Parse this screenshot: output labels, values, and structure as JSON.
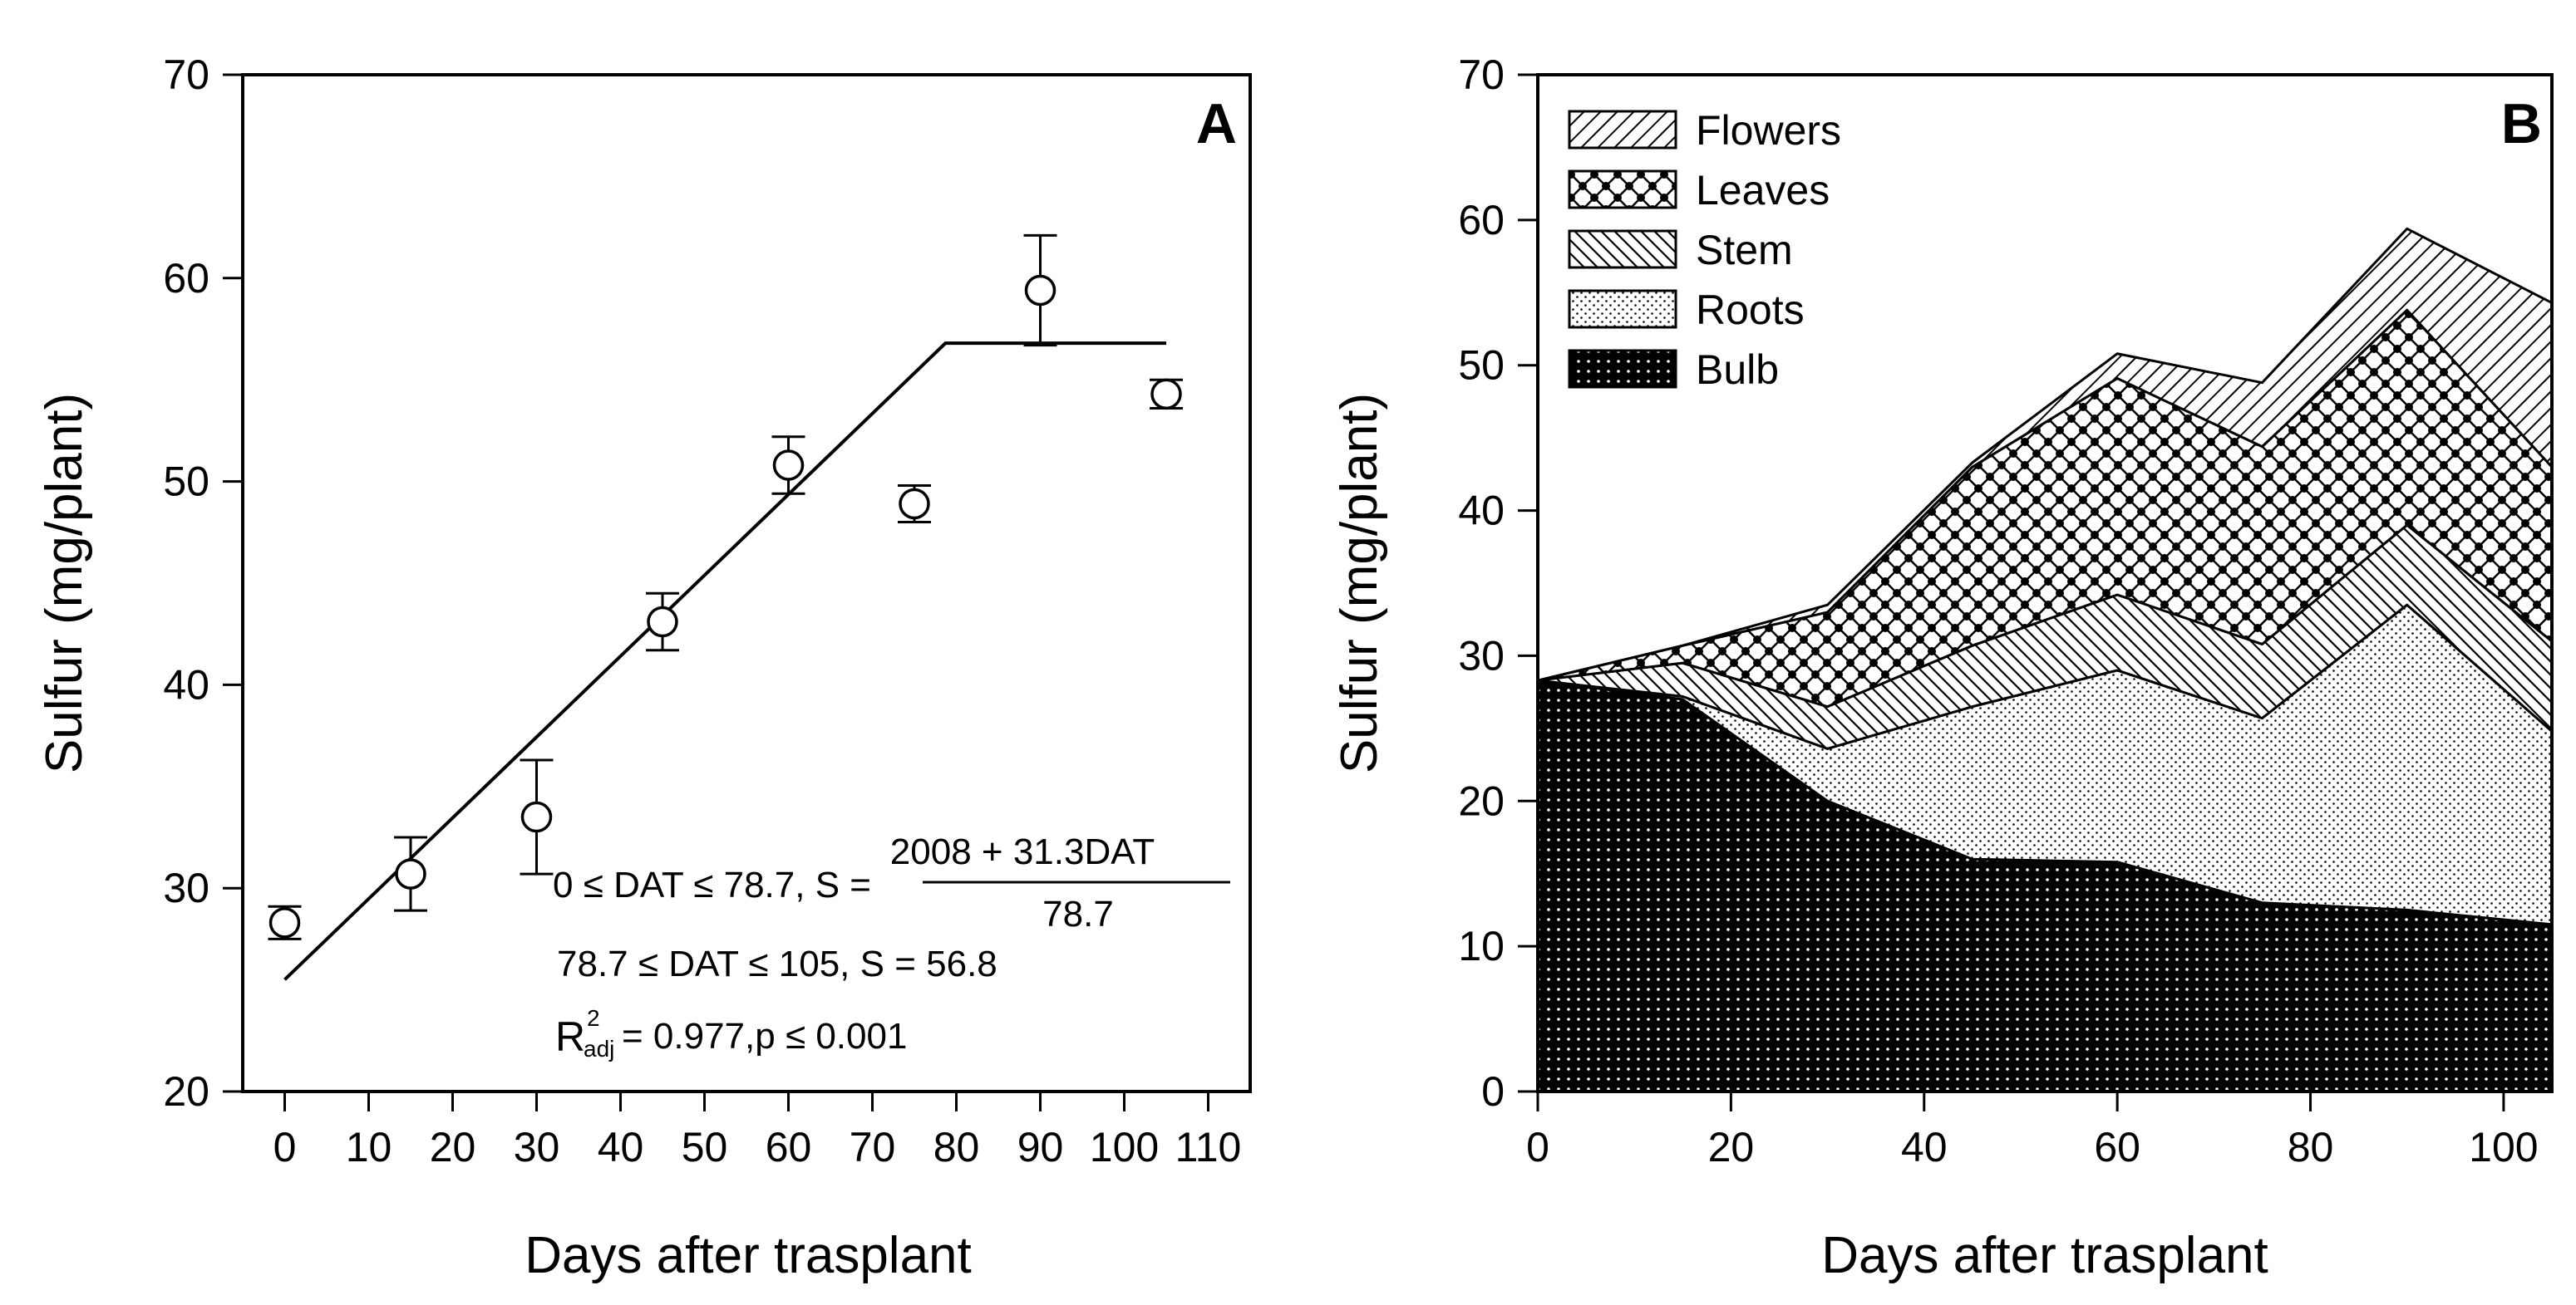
{
  "chart_data": [
    {
      "type": "scatter",
      "panel_label": "A",
      "xlabel": "Days after trasplant",
      "ylabel": "Sulfur (mg/plant)",
      "xlim": [
        -5,
        115
      ],
      "ylim": [
        20,
        70
      ],
      "xticks": [
        0,
        10,
        20,
        30,
        40,
        50,
        60,
        70,
        80,
        90,
        100,
        110
      ],
      "yticks": [
        20,
        30,
        40,
        50,
        60,
        70
      ],
      "points": [
        {
          "x": 0,
          "y": 28.3,
          "err": 0.8
        },
        {
          "x": 15,
          "y": 30.7,
          "err": 1.8
        },
        {
          "x": 30,
          "y": 33.5,
          "err": 2.8
        },
        {
          "x": 45,
          "y": 43.1,
          "err": 1.4
        },
        {
          "x": 60,
          "y": 50.8,
          "err": 1.4
        },
        {
          "x": 75,
          "y": 48.9,
          "err": 0.9
        },
        {
          "x": 90,
          "y": 59.4,
          "err": 2.7
        },
        {
          "x": 105,
          "y": 54.3,
          "err": 0.7
        }
      ],
      "fit_line": [
        {
          "x": 0,
          "y": 25.5
        },
        {
          "x": 78.7,
          "y": 56.8
        },
        {
          "x": 105,
          "y": 56.8
        }
      ],
      "equations": {
        "line1_prefix": "0 ≤ DAT ≤ 78.7, S =",
        "numerator": "2008 + 31.3DAT",
        "denominator": "78.7",
        "line2": "78.7 ≤ DAT ≤ 105, S = 56.8",
        "r_symbol": "R",
        "r_sup": "2",
        "r_sub": "adj",
        "r_value": " = 0.977,p ≤ 0.001"
      }
    },
    {
      "type": "area",
      "stacked": true,
      "panel_label": "B",
      "xlabel": "Days after trasplant",
      "ylabel": "Sulfur (mg/plant)",
      "xlim": [
        0,
        105
      ],
      "ylim": [
        0,
        70
      ],
      "xticks": [
        0,
        20,
        40,
        60,
        80,
        100
      ],
      "yticks": [
        0,
        10,
        20,
        30,
        40,
        50,
        60,
        70
      ],
      "x": [
        0,
        15,
        30,
        45,
        60,
        75,
        90,
        105
      ],
      "series": [
        {
          "name": "Bulb",
          "values": [
            28.3,
            27.0,
            20.0,
            16.0,
            15.8,
            13.0,
            12.5,
            11.5
          ]
        },
        {
          "name": "Roots",
          "values": [
            0.0,
            0.2,
            3.6,
            10.5,
            13.2,
            12.7,
            21.0,
            13.3
          ]
        },
        {
          "name": "Stem",
          "values": [
            0.0,
            2.3,
            2.9,
            4.2,
            5.2,
            5.1,
            5.5,
            6.2
          ]
        },
        {
          "name": "Leaves",
          "values": [
            0.0,
            1.2,
            6.5,
            12.3,
            14.9,
            13.6,
            14.8,
            12.0
          ]
        },
        {
          "name": "Flowers",
          "values": [
            0.0,
            0.0,
            0.5,
            0.3,
            1.7,
            4.4,
            5.6,
            11.3
          ]
        }
      ],
      "legend": [
        "Flowers",
        "Leaves",
        "Stem",
        "Roots",
        "Bulb"
      ],
      "legend_position": "top-left"
    }
  ]
}
